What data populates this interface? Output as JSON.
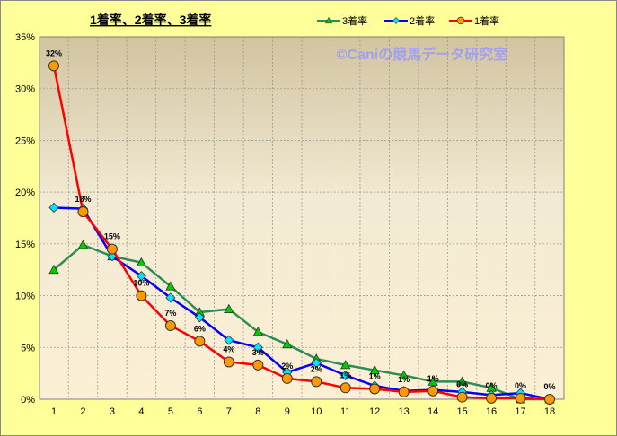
{
  "chart_data": {
    "type": "line",
    "title": "1着率、2着率、3着率",
    "watermark": "©Caniの競馬データ研究室",
    "xlabel": "",
    "ylabel": "",
    "x": [
      1,
      2,
      3,
      4,
      5,
      6,
      7,
      8,
      9,
      10,
      11,
      12,
      13,
      14,
      15,
      16,
      17,
      18
    ],
    "ylim": [
      0,
      35
    ],
    "yticks": [
      "0%",
      "5%",
      "10%",
      "15%",
      "20%",
      "25%",
      "30%",
      "35%"
    ],
    "grid": true,
    "legend_position": "top-right",
    "series": [
      {
        "name": "3着率",
        "color": "#2E8B57",
        "marker": "triangle",
        "marker_color": "#00CC00",
        "values": [
          12.5,
          14.9,
          13.8,
          13.2,
          10.9,
          8.4,
          8.7,
          6.5,
          5.3,
          3.9,
          3.3,
          2.8,
          2.3,
          1.7,
          1.7,
          1.1,
          0.0,
          0.0
        ]
      },
      {
        "name": "2着率",
        "color": "#0000FF",
        "marker": "diamond",
        "marker_color": "#00E5FF",
        "values": [
          18.5,
          18.4,
          13.8,
          11.9,
          9.8,
          7.9,
          5.7,
          5.0,
          2.6,
          3.5,
          2.3,
          1.3,
          0.8,
          0.9,
          0.7,
          0.4,
          0.6,
          0.0
        ]
      },
      {
        "name": "1着率",
        "color": "#FF0000",
        "marker": "circle",
        "marker_color": "#FF9900",
        "values": [
          32.2,
          18.1,
          14.5,
          10.0,
          7.1,
          5.6,
          3.6,
          3.3,
          2.0,
          1.7,
          1.1,
          1.0,
          0.7,
          0.8,
          0.2,
          0.1,
          0.1,
          0.0
        ],
        "data_labels": [
          "32%",
          "18%",
          "15%",
          "10%",
          "7%",
          "6%",
          "4%",
          "3%",
          "2%",
          "2%",
          "1%",
          "1%",
          "1%",
          "1%",
          "0%",
          "0%",
          "0%",
          "0%"
        ]
      }
    ]
  }
}
